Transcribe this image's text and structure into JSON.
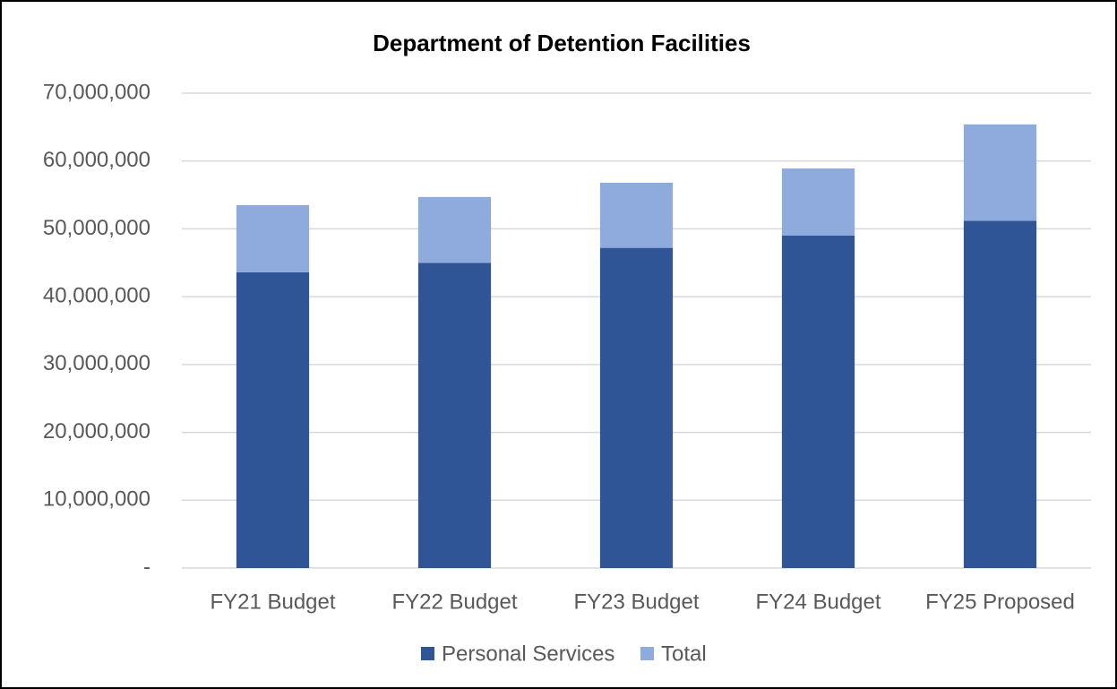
{
  "chart_data": {
    "type": "stacked_bar",
    "title": "Department of Detention Facilities",
    "categories": [
      "FY21 Budget",
      "FY22 Budget",
      "FY23 Budget",
      "FY24 Budget",
      "FY25 Proposed"
    ],
    "series": [
      {
        "name": "Personal Services",
        "color": "#2f5597",
        "values": [
          43600000,
          45000000,
          47200000,
          49000000,
          51200000
        ]
      },
      {
        "name": "Total",
        "color": "#8faadc",
        "values": [
          9900000,
          9700000,
          9600000,
          9900000,
          14200000
        ]
      }
    ],
    "ylim": [
      0,
      70000000
    ],
    "yticks": [
      {
        "value": 0,
        "label": "-"
      },
      {
        "value": 10000000,
        "label": "10,000,000"
      },
      {
        "value": 20000000,
        "label": "20,000,000"
      },
      {
        "value": 30000000,
        "label": "30,000,000"
      },
      {
        "value": 40000000,
        "label": "40,000,000"
      },
      {
        "value": 50000000,
        "label": "50,000,000"
      },
      {
        "value": 60000000,
        "label": "60,000,000"
      },
      {
        "value": 70000000,
        "label": "70,000,000"
      }
    ],
    "grid": true,
    "legend": "bottom"
  }
}
